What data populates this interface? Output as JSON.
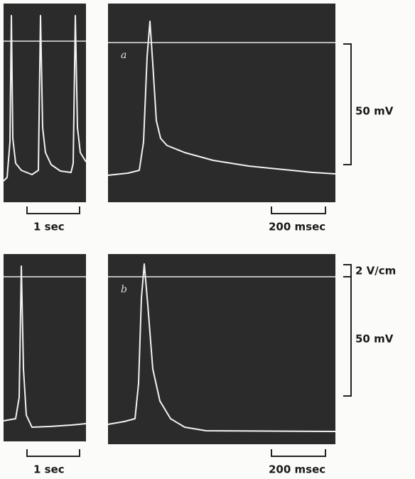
{
  "panels": [
    {
      "label": "a",
      "scale_bars": {
        "voltage": "50 mV",
        "time_left": "1 sec",
        "time_right": "200 msec"
      }
    },
    {
      "label": "b",
      "scale_bars": {
        "gain": "2 V/cm",
        "voltage": "50 mV",
        "time_left": "1 sec",
        "time_right": "200 msec"
      }
    }
  ]
}
